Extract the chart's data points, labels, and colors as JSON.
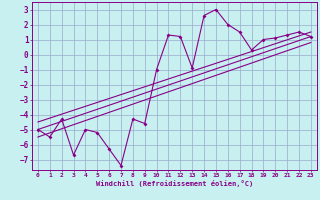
{
  "xlabel": "Windchill (Refroidissement éolien,°C)",
  "bg_color": "#c8f0f0",
  "line_color": "#880088",
  "grid_color": "#99aacc",
  "xlim": [
    -0.5,
    23.5
  ],
  "ylim": [
    -7.7,
    3.5
  ],
  "xticks": [
    0,
    1,
    2,
    3,
    4,
    5,
    6,
    7,
    8,
    9,
    10,
    11,
    12,
    13,
    14,
    15,
    16,
    17,
    18,
    19,
    20,
    21,
    22,
    23
  ],
  "yticks": [
    -7,
    -6,
    -5,
    -4,
    -3,
    -2,
    -1,
    0,
    1,
    2,
    3
  ],
  "data_x": [
    0,
    1,
    2,
    3,
    4,
    5,
    6,
    7,
    8,
    9,
    10,
    11,
    12,
    13,
    14,
    15,
    16,
    17,
    18,
    19,
    20,
    21,
    22,
    23
  ],
  "data_y": [
    -5.0,
    -5.5,
    -4.3,
    -6.7,
    -5.0,
    -5.2,
    -6.3,
    -7.4,
    -4.3,
    -4.6,
    -1.0,
    1.3,
    1.2,
    -0.9,
    2.6,
    3.0,
    2.0,
    1.5,
    0.3,
    1.0,
    1.1,
    1.3,
    1.5,
    1.2
  ],
  "line1_x": [
    0,
    23
  ],
  "line1_y": [
    -5.0,
    1.2
  ],
  "line2_x": [
    0,
    23
  ],
  "line2_y": [
    -4.5,
    1.5
  ],
  "line3_x": [
    0,
    23
  ],
  "line3_y": [
    -5.5,
    0.8
  ]
}
